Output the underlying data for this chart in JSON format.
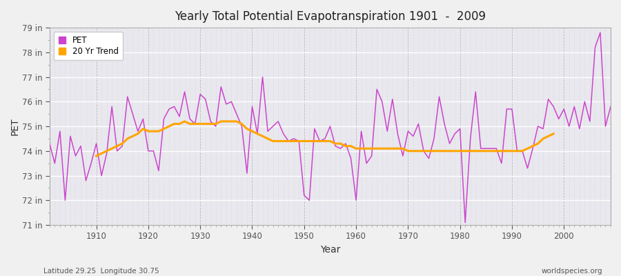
{
  "title": "Yearly Total Potential Evapotranspiration 1901  -  2009",
  "xlabel": "Year",
  "ylabel": "PET",
  "subtitle_left": "Latitude 29.25  Longitude 30.75",
  "subtitle_right": "worldspecies.org",
  "pet_color": "#CC44CC",
  "trend_color": "#FFA500",
  "background_color": "#F0F0F0",
  "plot_bg_color": "#E8E8EE",
  "grid_color_major": "#FFFFFF",
  "grid_color_minor": "#DDDDEE",
  "ylim_low": 71,
  "ylim_high": 79,
  "years": [
    1901,
    1902,
    1903,
    1904,
    1905,
    1906,
    1907,
    1908,
    1909,
    1910,
    1911,
    1912,
    1913,
    1914,
    1915,
    1916,
    1917,
    1918,
    1919,
    1920,
    1921,
    1922,
    1923,
    1924,
    1925,
    1926,
    1927,
    1928,
    1929,
    1930,
    1931,
    1932,
    1933,
    1934,
    1935,
    1936,
    1937,
    1938,
    1939,
    1940,
    1941,
    1942,
    1943,
    1944,
    1945,
    1946,
    1947,
    1948,
    1949,
    1950,
    1951,
    1952,
    1953,
    1954,
    1955,
    1956,
    1957,
    1958,
    1959,
    1960,
    1961,
    1962,
    1963,
    1964,
    1965,
    1966,
    1967,
    1968,
    1969,
    1970,
    1971,
    1972,
    1973,
    1974,
    1975,
    1976,
    1977,
    1978,
    1979,
    1980,
    1981,
    1982,
    1983,
    1984,
    1985,
    1986,
    1987,
    1988,
    1989,
    1990,
    1991,
    1992,
    1993,
    1994,
    1995,
    1996,
    1997,
    1998,
    1999,
    2000,
    2001,
    2002,
    2003,
    2004,
    2005,
    2006,
    2007,
    2008,
    2009
  ],
  "pet_values": [
    74.3,
    73.5,
    74.8,
    72.0,
    74.6,
    73.8,
    74.2,
    72.8,
    73.5,
    74.3,
    73.0,
    73.9,
    75.8,
    74.0,
    74.2,
    76.2,
    75.5,
    74.8,
    75.3,
    74.0,
    74.0,
    73.2,
    75.3,
    75.7,
    75.8,
    75.4,
    76.4,
    75.3,
    75.1,
    76.3,
    76.1,
    75.2,
    75.0,
    76.6,
    75.9,
    76.0,
    75.5,
    75.0,
    73.1,
    75.8,
    74.7,
    77.0,
    74.8,
    75.0,
    75.2,
    74.7,
    74.4,
    74.5,
    74.4,
    72.2,
    72.0,
    74.9,
    74.4,
    74.5,
    75.0,
    74.2,
    74.1,
    74.3,
    73.7,
    72.0,
    74.8,
    73.5,
    73.8,
    76.5,
    76.0,
    74.8,
    76.1,
    74.7,
    73.8,
    74.8,
    74.6,
    75.1,
    74.0,
    73.7,
    74.5,
    76.2,
    75.1,
    74.3,
    74.7,
    74.9,
    71.1,
    74.5,
    76.4,
    74.1,
    74.1,
    74.1,
    74.1,
    73.5,
    75.7,
    75.7,
    74.0,
    74.0,
    73.3,
    74.1,
    75.0,
    74.9,
    76.1,
    75.8,
    75.3,
    75.7,
    75.0,
    75.8,
    74.9,
    76.0,
    75.2,
    78.2,
    78.8,
    75.0,
    75.8
  ],
  "trend_values": [
    null,
    null,
    null,
    null,
    null,
    null,
    null,
    null,
    null,
    73.8,
    73.9,
    74.0,
    74.1,
    74.2,
    74.3,
    74.5,
    74.6,
    74.7,
    74.9,
    74.8,
    74.8,
    74.8,
    74.9,
    75.0,
    75.1,
    75.1,
    75.2,
    75.1,
    75.1,
    75.1,
    75.1,
    75.1,
    75.1,
    75.2,
    75.2,
    75.2,
    75.2,
    75.1,
    74.9,
    74.8,
    74.7,
    74.6,
    74.5,
    74.4,
    74.4,
    74.4,
    74.4,
    74.4,
    74.4,
    74.4,
    74.4,
    74.4,
    74.4,
    74.4,
    74.4,
    74.3,
    74.3,
    74.2,
    74.2,
    74.1,
    74.1,
    74.1,
    74.1,
    74.1,
    74.1,
    74.1,
    74.1,
    74.1,
    74.1,
    74.0,
    74.0,
    74.0,
    74.0,
    74.0,
    74.0,
    74.0,
    74.0,
    74.0,
    74.0,
    74.0,
    74.0,
    74.0,
    74.0,
    74.0,
    74.0,
    74.0,
    74.0,
    74.0,
    74.0,
    74.0,
    74.0,
    74.0,
    74.1,
    74.2,
    74.3,
    74.5,
    74.6,
    74.7,
    null,
    null,
    null,
    null,
    null,
    null,
    null,
    null,
    null,
    null
  ]
}
